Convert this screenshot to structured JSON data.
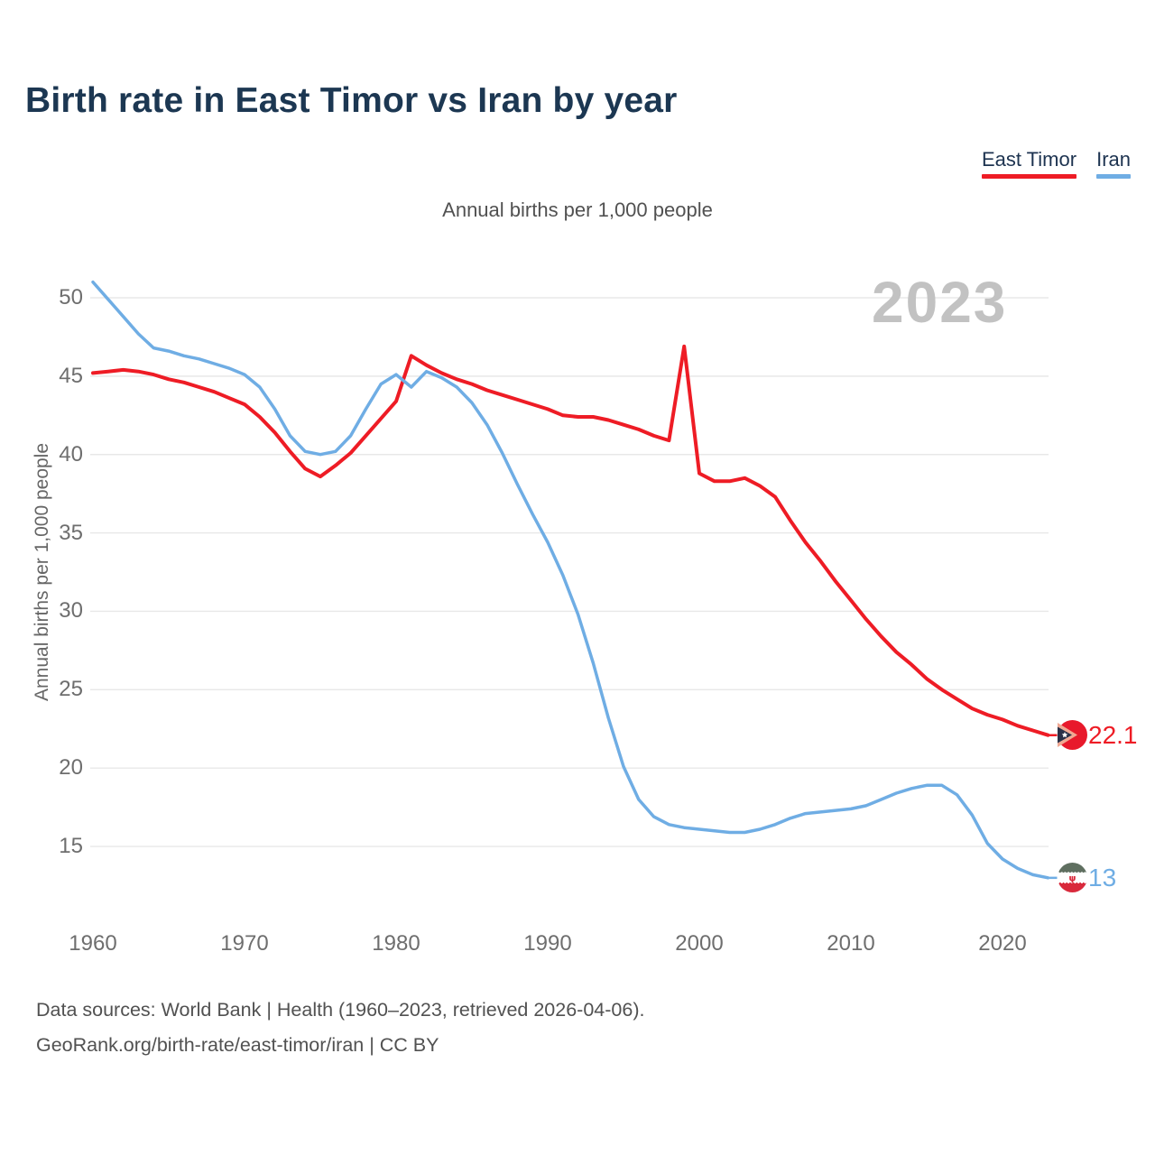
{
  "title": "Birth rate in East Timor vs Iran by year",
  "subtitle": "Annual births per 1,000 people",
  "watermark": "2023",
  "legend": [
    {
      "label": "East Timor",
      "color": "#ee1c25"
    },
    {
      "label": "Iran",
      "color": "#6fade4"
    }
  ],
  "y_axis": {
    "title": "Annual births per 1,000 people",
    "ticks": [
      50,
      45,
      40,
      35,
      30,
      25,
      20,
      15
    ]
  },
  "x_axis": {
    "ticks": [
      1960,
      1970,
      1980,
      1990,
      2000,
      2010,
      2020
    ]
  },
  "end_labels": [
    {
      "series": "East Timor",
      "value": "22.1",
      "color": "#ee1c25"
    },
    {
      "series": "Iran",
      "value": "13",
      "color": "#6fade4"
    }
  ],
  "footer": {
    "line1": "Data sources: World Bank | Health (1960–2023, retrieved 2026-04-06).",
    "line2": "GeoRank.org/birth-rate/east-timor/iran | CC BY"
  },
  "chart_data": {
    "type": "line",
    "title": "Birth rate in East Timor vs Iran by year",
    "ylabel": "Annual births per 1,000 people",
    "ylim": [
      13,
      52
    ],
    "yticks": [
      15,
      20,
      25,
      30,
      35,
      40,
      45,
      50
    ],
    "xticks": [
      1960,
      1970,
      1980,
      1990,
      2000,
      2010,
      2020
    ],
    "grid": "horizontal",
    "legend_position": "top-right",
    "x": [
      1960,
      1961,
      1962,
      1963,
      1964,
      1965,
      1966,
      1967,
      1968,
      1969,
      1970,
      1971,
      1972,
      1973,
      1974,
      1975,
      1976,
      1977,
      1978,
      1979,
      1980,
      1981,
      1982,
      1983,
      1984,
      1985,
      1986,
      1987,
      1988,
      1989,
      1990,
      1991,
      1992,
      1993,
      1994,
      1995,
      1996,
      1997,
      1998,
      1999,
      2000,
      2001,
      2002,
      2003,
      2004,
      2005,
      2006,
      2007,
      2008,
      2009,
      2010,
      2011,
      2012,
      2013,
      2014,
      2015,
      2016,
      2017,
      2018,
      2019,
      2020,
      2021,
      2022,
      2023
    ],
    "series": [
      {
        "name": "East Timor",
        "color": "#ee1c25",
        "values": [
          45.2,
          45.3,
          45.4,
          45.3,
          45.1,
          44.8,
          44.6,
          44.3,
          44.0,
          43.6,
          43.2,
          42.4,
          41.4,
          40.2,
          39.1,
          38.6,
          39.3,
          40.1,
          41.2,
          42.3,
          43.4,
          46.3,
          45.7,
          45.2,
          44.8,
          44.5,
          44.1,
          43.8,
          43.5,
          43.2,
          42.9,
          42.5,
          42.4,
          42.4,
          42.2,
          41.9,
          41.6,
          41.2,
          40.9,
          46.9,
          38.8,
          38.3,
          38.3,
          38.5,
          38.0,
          37.3,
          35.8,
          34.4,
          33.2,
          31.9,
          30.7,
          29.5,
          28.4,
          27.4,
          26.6,
          25.7,
          25.0,
          24.4,
          23.8,
          23.4,
          23.1,
          22.7,
          22.4,
          22.1
        ]
      },
      {
        "name": "Iran",
        "color": "#6fade4",
        "values": [
          51.0,
          49.9,
          48.8,
          47.7,
          46.8,
          46.6,
          46.3,
          46.1,
          45.8,
          45.5,
          45.1,
          44.3,
          42.9,
          41.2,
          40.2,
          40.0,
          40.2,
          41.2,
          42.9,
          44.5,
          45.1,
          44.3,
          45.3,
          44.9,
          44.3,
          43.3,
          41.9,
          40.1,
          38.1,
          36.2,
          34.4,
          32.3,
          29.8,
          26.7,
          23.2,
          20.1,
          18.0,
          16.9,
          16.4,
          16.2,
          16.1,
          16.0,
          15.9,
          15.9,
          16.1,
          16.4,
          16.8,
          17.1,
          17.2,
          17.3,
          17.4,
          17.6,
          18.0,
          18.4,
          18.7,
          18.9,
          18.9,
          18.3,
          17.0,
          15.2,
          14.2,
          13.6,
          13.2,
          13.0
        ]
      }
    ]
  }
}
